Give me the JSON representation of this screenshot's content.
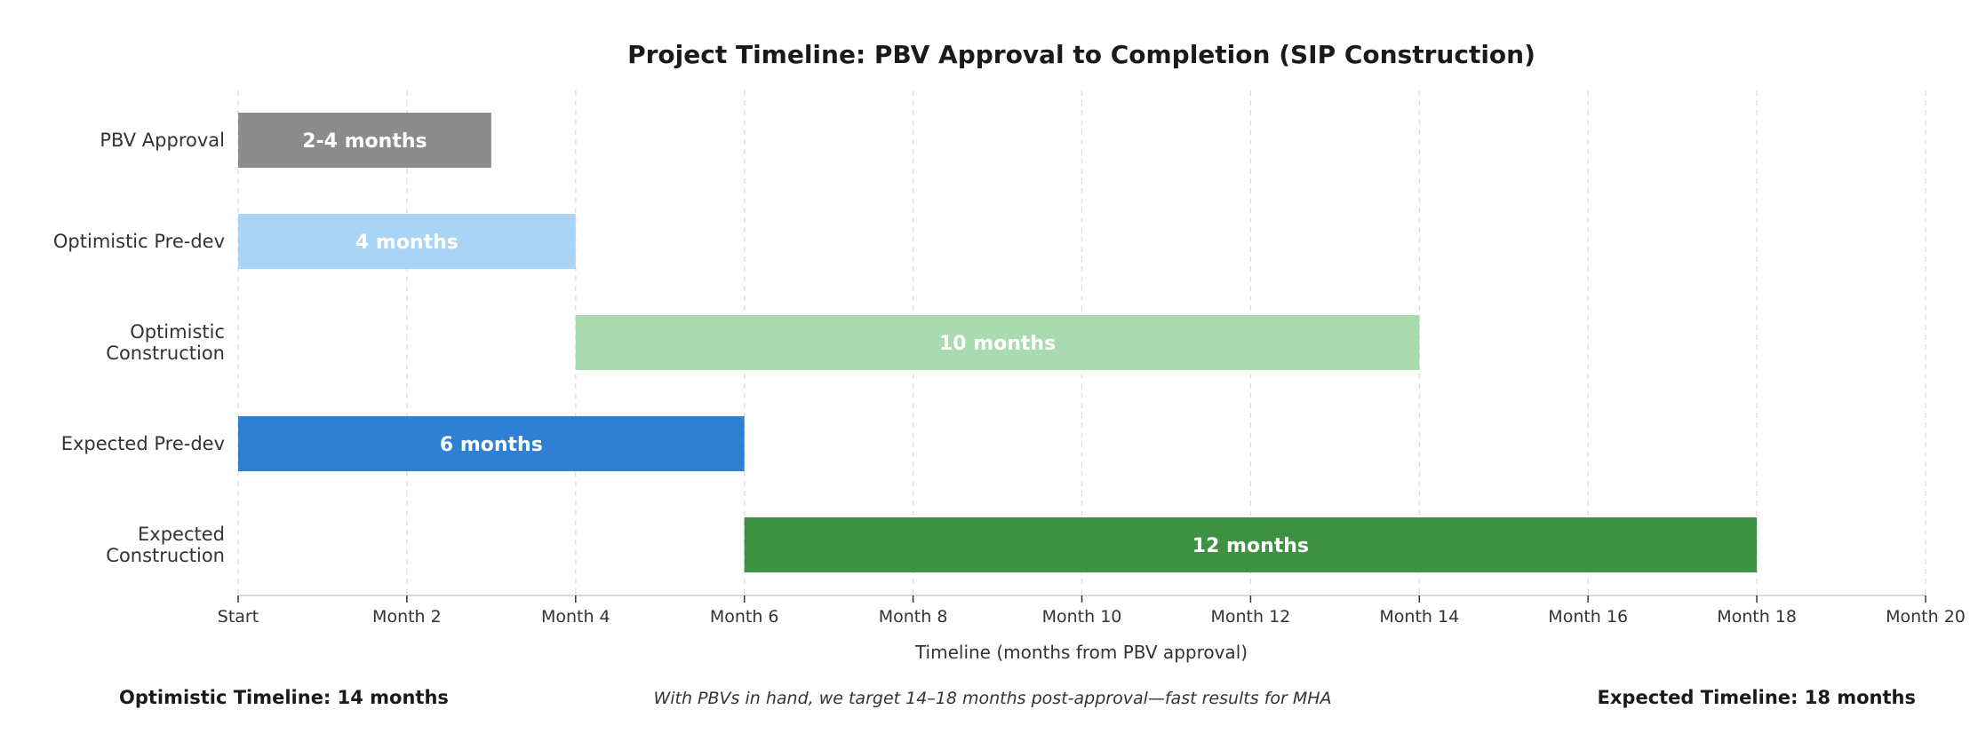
{
  "chart_data": {
    "type": "bar",
    "orientation": "horizontal-gantt",
    "title": "Project Timeline: PBV Approval to Completion (SIP Construction)",
    "xlabel": "Timeline (months from PBV approval)",
    "ylabel": "",
    "xlim": [
      0,
      20
    ],
    "x_ticks": [
      {
        "value": 0,
        "label": "Start"
      },
      {
        "value": 2,
        "label": "Month 2"
      },
      {
        "value": 4,
        "label": "Month 4"
      },
      {
        "value": 6,
        "label": "Month 6"
      },
      {
        "value": 8,
        "label": "Month 8"
      },
      {
        "value": 10,
        "label": "Month 10"
      },
      {
        "value": 12,
        "label": "Month 12"
      },
      {
        "value": 14,
        "label": "Month 14"
      },
      {
        "value": 16,
        "label": "Month 16"
      },
      {
        "value": 18,
        "label": "Month 18"
      },
      {
        "value": 20,
        "label": "Month 20"
      }
    ],
    "grid": "vertical dashed",
    "tasks": [
      {
        "name": "PBV Approval",
        "lines": [
          "PBV Approval"
        ],
        "start": 0,
        "end": 3,
        "label": "2-4 months",
        "color": "#8c8c8c"
      },
      {
        "name": "Optimistic Pre-dev",
        "lines": [
          "Optimistic Pre-dev"
        ],
        "start": 0,
        "end": 4,
        "label": "4 months",
        "color": "#aad4f5"
      },
      {
        "name": "Optimistic Construction",
        "lines": [
          "Optimistic",
          "Construction"
        ],
        "start": 4,
        "end": 14,
        "label": "10 months",
        "color": "#aadab0"
      },
      {
        "name": "Expected Pre-dev",
        "lines": [
          "Expected Pre-dev"
        ],
        "start": 0,
        "end": 6,
        "label": "6 months",
        "color": "#2f80d2"
      },
      {
        "name": "Expected Construction",
        "lines": [
          "Expected",
          "Construction"
        ],
        "start": 6,
        "end": 18,
        "label": "12 months",
        "color": "#3e9142"
      }
    ]
  },
  "footer": {
    "optimistic": "Optimistic Timeline: 14 months",
    "note": "With PBVs in hand, we target 14–18 months post-approval—fast results for MHA",
    "expected": "Expected Timeline: 18 months"
  }
}
